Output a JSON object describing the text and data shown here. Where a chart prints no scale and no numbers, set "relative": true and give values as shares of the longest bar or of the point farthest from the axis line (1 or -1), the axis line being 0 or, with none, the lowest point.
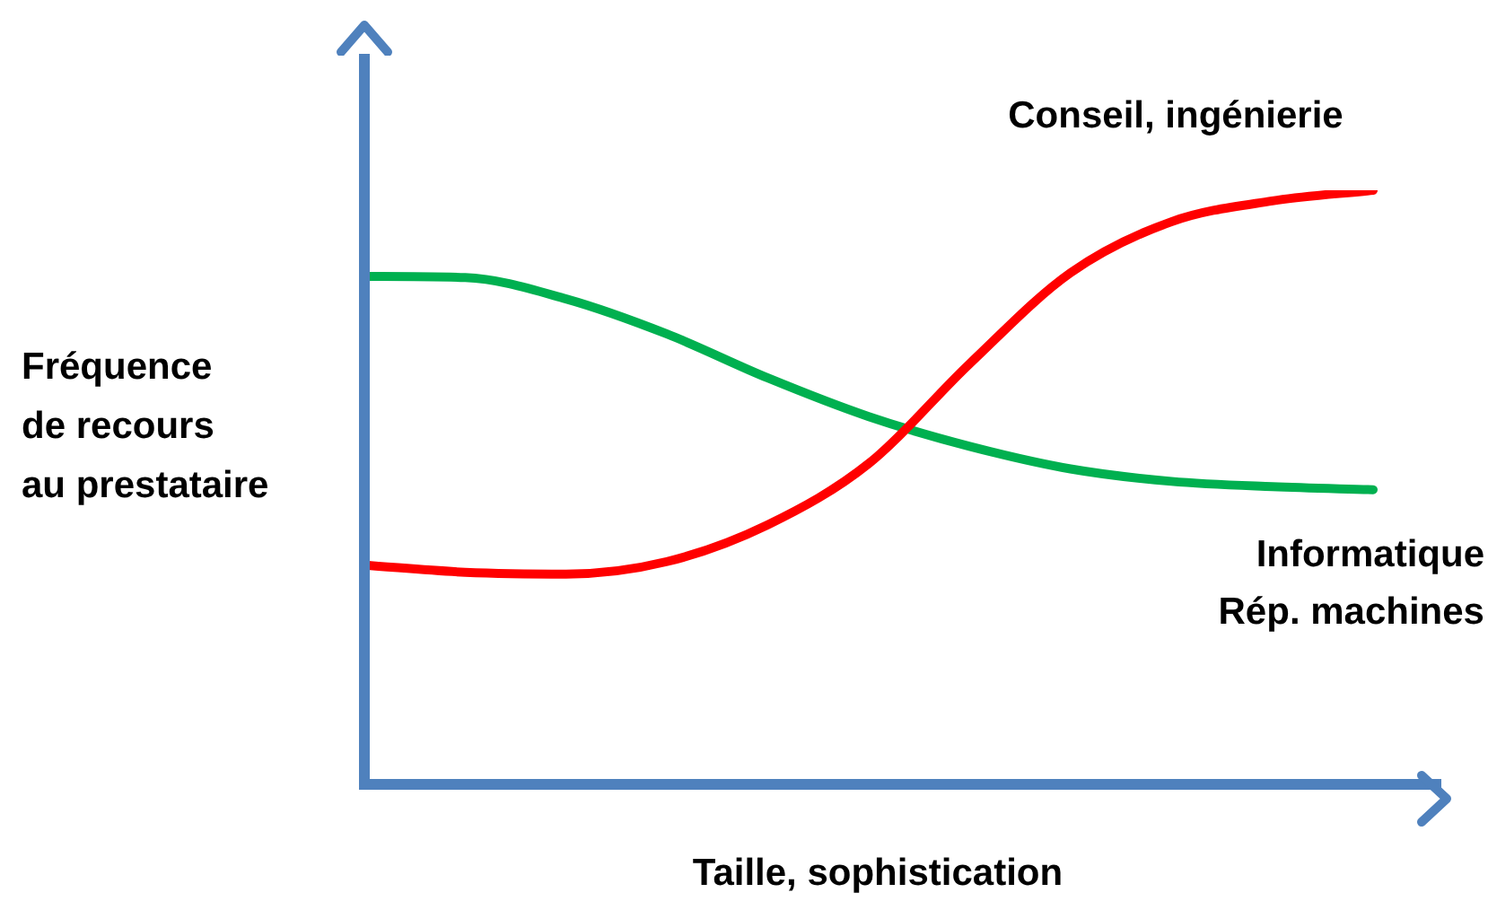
{
  "chart_data": {
    "type": "line",
    "xlabel": "Taille, sophistication",
    "ylabel": "Fréquence\nde recours\nau prestataire",
    "relative": true,
    "grid": false,
    "legend": false,
    "marker": "none",
    "line_style": "solid",
    "categories": [
      null,
      null,
      null,
      null,
      null,
      null,
      null,
      null,
      null,
      null,
      null
    ],
    "series": [
      {
        "name": "Conseil, ingénierie",
        "color": "#ff0000",
        "values": [
          0.369,
          0.357,
          0.354,
          0.375,
          0.437,
          0.54,
          0.708,
          0.861,
          0.947,
          0.982,
          1
        ]
      },
      {
        "name": "Informatique\nRép. machines",
        "color": "#00b050",
        "values": [
          0.855,
          0.853,
          0.817,
          0.758,
          0.684,
          0.619,
          0.569,
          0.531,
          0.51,
          0.501,
          0.496
        ]
      }
    ]
  }
}
